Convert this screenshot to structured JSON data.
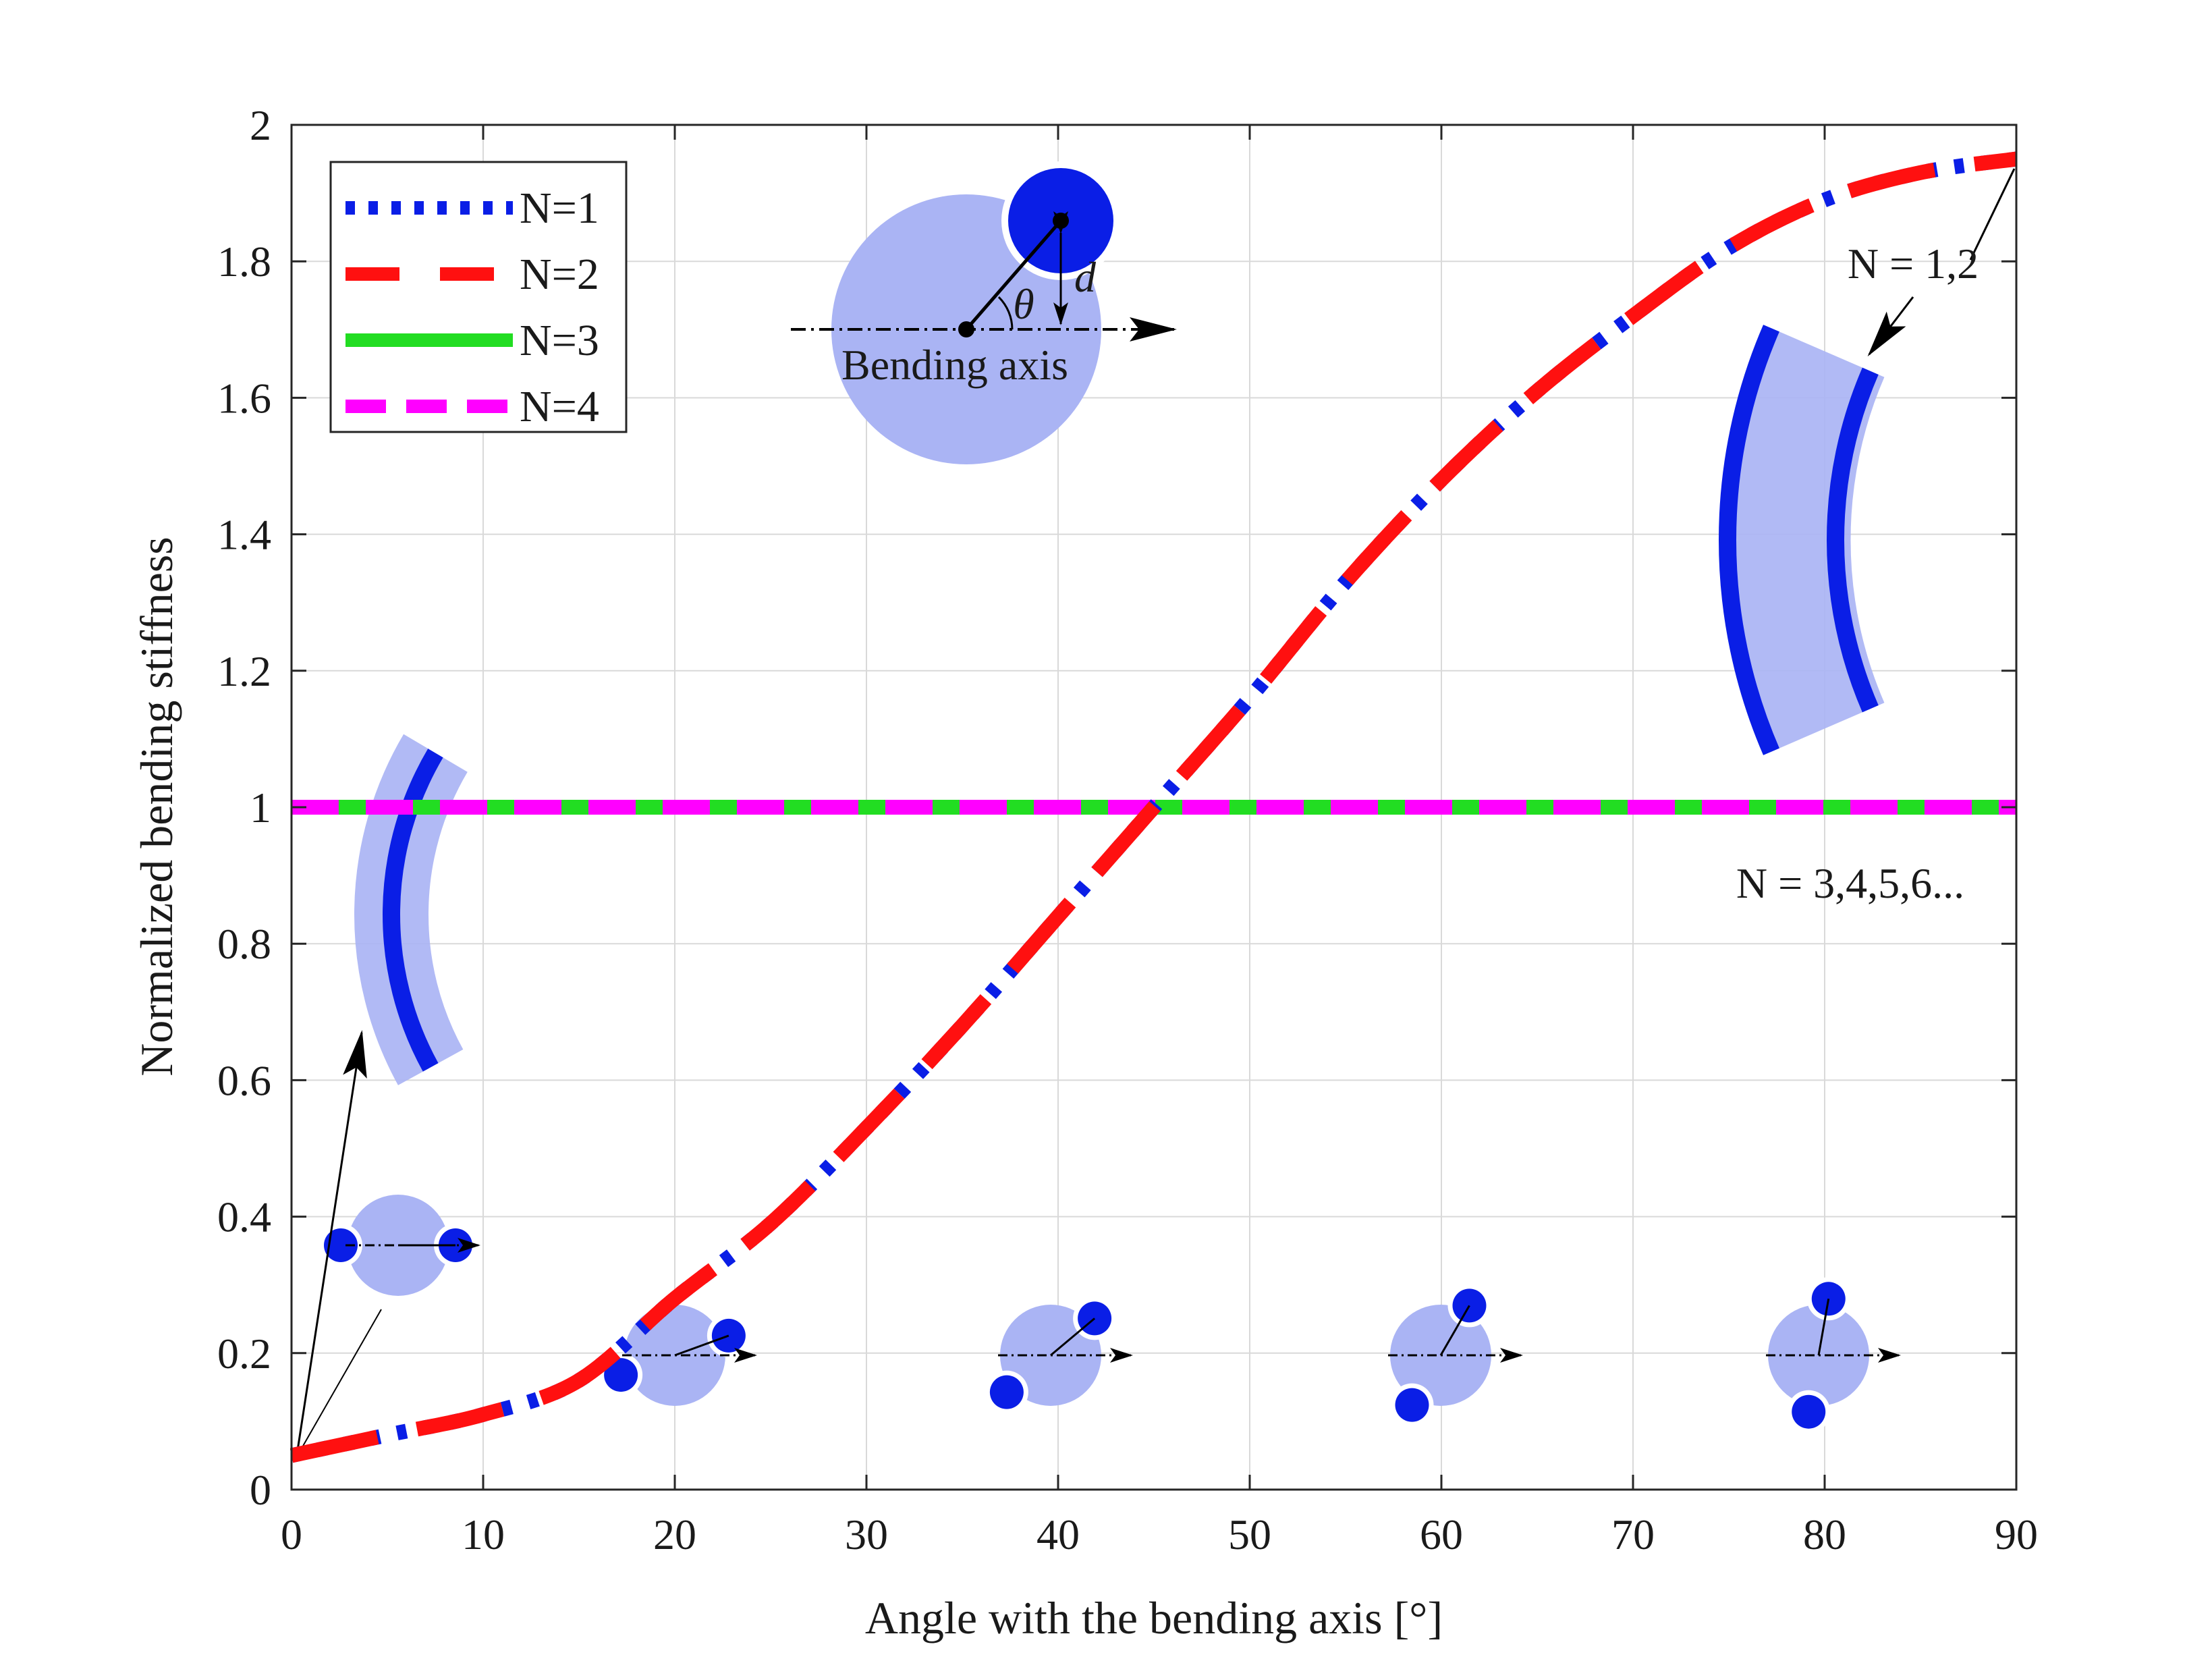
{
  "colors": {
    "n1": "#0a1ee6",
    "n2": "#ff1010",
    "n3": "#22dd22",
    "n4": "#ff00ff",
    "fiber": "#0a1ee6",
    "matrix": "#aab4f4",
    "grid": "#d9d9d9",
    "axis": "#262626"
  },
  "chart_data": {
    "type": "line",
    "title": "",
    "xlabel": "Angle with the bending axis [°]",
    "ylabel": "Normalized bending stiffness",
    "xlim": [
      0,
      90
    ],
    "ylim": [
      0,
      2
    ],
    "grid": true,
    "legend_position": "top-left",
    "x_ticks": [
      "0",
      "10",
      "20",
      "30",
      "40",
      "50",
      "60",
      "70",
      "80",
      "90"
    ],
    "y_ticks": [
      "0",
      "0.2",
      "0.4",
      "0.6",
      "0.8",
      "1",
      "1.2",
      "1.4",
      "1.6",
      "1.8",
      "2"
    ],
    "x": [
      0,
      5,
      10,
      15,
      20,
      25,
      30,
      35,
      40,
      45,
      50,
      55,
      60,
      65,
      70,
      75,
      80,
      85,
      90
    ],
    "series": [
      {
        "name": "N=1",
        "style": "dotted",
        "values": [
          0.05,
          0.08,
          0.11,
          0.16,
          0.28,
          0.39,
          0.53,
          0.68,
          0.84,
          1.0,
          1.16,
          1.33,
          1.48,
          1.61,
          1.72,
          1.82,
          1.89,
          1.93,
          1.95
        ]
      },
      {
        "name": "N=2",
        "style": "dashed",
        "values": [
          0.05,
          0.08,
          0.11,
          0.16,
          0.28,
          0.39,
          0.53,
          0.68,
          0.84,
          1.0,
          1.16,
          1.33,
          1.48,
          1.61,
          1.72,
          1.82,
          1.89,
          1.93,
          1.95
        ]
      },
      {
        "name": "N=3",
        "style": "solid",
        "values": [
          1,
          1,
          1,
          1,
          1,
          1,
          1,
          1,
          1,
          1,
          1,
          1,
          1,
          1,
          1,
          1,
          1,
          1,
          1
        ]
      },
      {
        "name": "N=4",
        "style": "dashed",
        "values": [
          1,
          1,
          1,
          1,
          1,
          1,
          1,
          1,
          1,
          1,
          1,
          1,
          1,
          1,
          1,
          1,
          1,
          1,
          1
        ]
      }
    ],
    "annotations": {
      "bending_axis": "Bending axis",
      "theta": "θ",
      "d": "d",
      "label_n12": "N = 1,2",
      "label_n3456": "N = 3,4,5,6..."
    },
    "inset_angles": [
      0,
      20,
      40,
      60,
      80
    ]
  }
}
